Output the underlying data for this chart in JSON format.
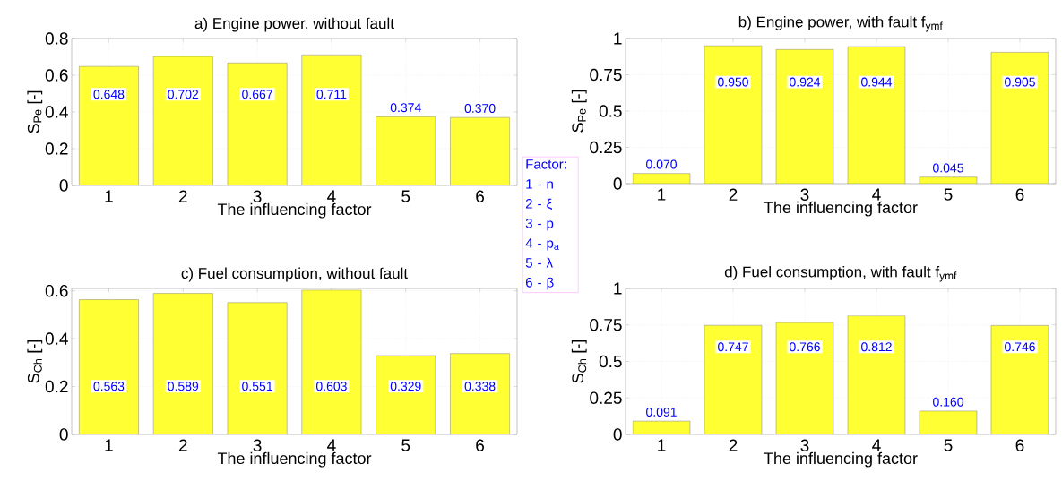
{
  "chart_data": [
    {
      "type": "bar",
      "title": "a) Engine power, without fault",
      "xlabel": "The influencing factor",
      "ylabel": "S$_{Pe}$ [-]",
      "categories": [
        "1",
        "2",
        "3",
        "4",
        "5",
        "6"
      ],
      "values": [
        0.648,
        0.702,
        0.667,
        0.711,
        0.374,
        0.37
      ],
      "value_labels": [
        "0.648",
        "0.702",
        "0.667",
        "0.711",
        "0.374",
        "0.370"
      ],
      "color": "#ffff33",
      "ylim": [
        0,
        0.8
      ],
      "yticks": [
        0,
        0.2,
        0.4,
        0.6,
        0.8
      ],
      "grid": true,
      "annotations": [
        "Factor:",
        "1 - n",
        "2 - ξ",
        "3 - p",
        "4 - p$_{a}$",
        "5 - λ",
        "6 - β"
      ]
    },
    {
      "type": "bar",
      "title": "b) Engine power, with fault f$_{ymf}$",
      "xlabel": "The influencing factor",
      "ylabel": "S$_{Pe}$ [-]",
      "categories": [
        "1",
        "2",
        "3",
        "4",
        "5",
        "6"
      ],
      "values": [
        0.07,
        0.95,
        0.924,
        0.944,
        0.045,
        0.905
      ],
      "value_labels": [
        "0.070",
        "0.950",
        "0.924",
        "0.944",
        "0.045",
        "0.905"
      ],
      "color": "#ffff33",
      "ylim": [
        0,
        1
      ],
      "yticks": [
        0,
        0.25,
        0.5,
        0.75,
        1
      ],
      "grid": true
    },
    {
      "type": "bar",
      "title": "c) Fuel consumption, without fault",
      "ylabel": "S$_{Ch}$ [-]",
      "xlabel": "The influencing factor",
      "categories": [
        "1",
        "2",
        "3",
        "4",
        "5",
        "6"
      ],
      "values": [
        0.563,
        0.589,
        0.551,
        0.603,
        0.329,
        0.338
      ],
      "value_labels": [
        "0.563",
        "0.589",
        "0.551",
        "0.603",
        "0.329",
        "0.338"
      ],
      "color": "#ffff33",
      "ylim": [
        0,
        0.61
      ],
      "yticks": [
        0,
        0.2,
        0.4,
        0.6
      ],
      "grid": true
    },
    {
      "type": "bar",
      "title": "d) Fuel consumption, with fault f$_{ymf}$",
      "ylabel": "S$_{Ch}$ [-]",
      "xlabel": "The influencing factor",
      "categories": [
        "1",
        "2",
        "3",
        "4",
        "5",
        "6"
      ],
      "values": [
        0.091,
        0.747,
        0.766,
        0.812,
        0.16,
        0.746
      ],
      "value_labels": [
        "0.091",
        "0.747",
        "0.766",
        "0.812",
        "0.160",
        "0.746"
      ],
      "color": "#ffff33",
      "ylim": [
        0,
        1
      ],
      "yticks": [
        0,
        0.25,
        0.5,
        0.75,
        1
      ],
      "grid": true
    }
  ]
}
